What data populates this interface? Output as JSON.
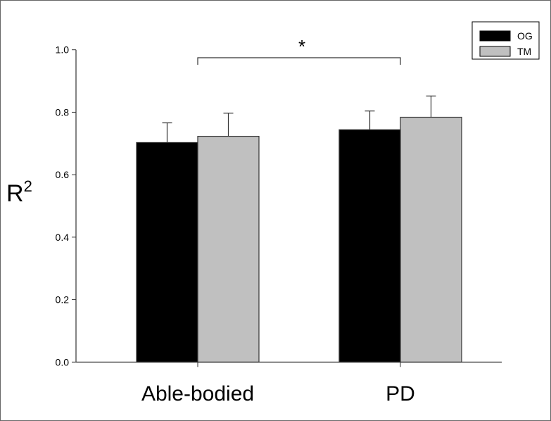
{
  "chart_data": {
    "type": "bar",
    "title": "",
    "xlabel": "",
    "ylabel": "R",
    "ylabel_superscript": "2",
    "ylim": [
      0,
      1.0
    ],
    "yticks": [
      "0.0",
      "0.2",
      "0.4",
      "0.6",
      "0.8",
      "1.0"
    ],
    "categories": [
      "Able-bodied",
      "PD"
    ],
    "series": [
      {
        "name": "OG",
        "color": "#000000",
        "values": [
          0.703,
          0.744
        ],
        "error": [
          0.063,
          0.06
        ]
      },
      {
        "name": "TM",
        "color": "#c0c0c0",
        "values": [
          0.723,
          0.784
        ],
        "error": [
          0.074,
          0.068
        ]
      }
    ],
    "grid": false,
    "legend_position": "top-right",
    "annotations": [
      {
        "text": "*",
        "type": "significance-bracket",
        "between": [
          "Able-bodied",
          "PD"
        ]
      }
    ]
  }
}
